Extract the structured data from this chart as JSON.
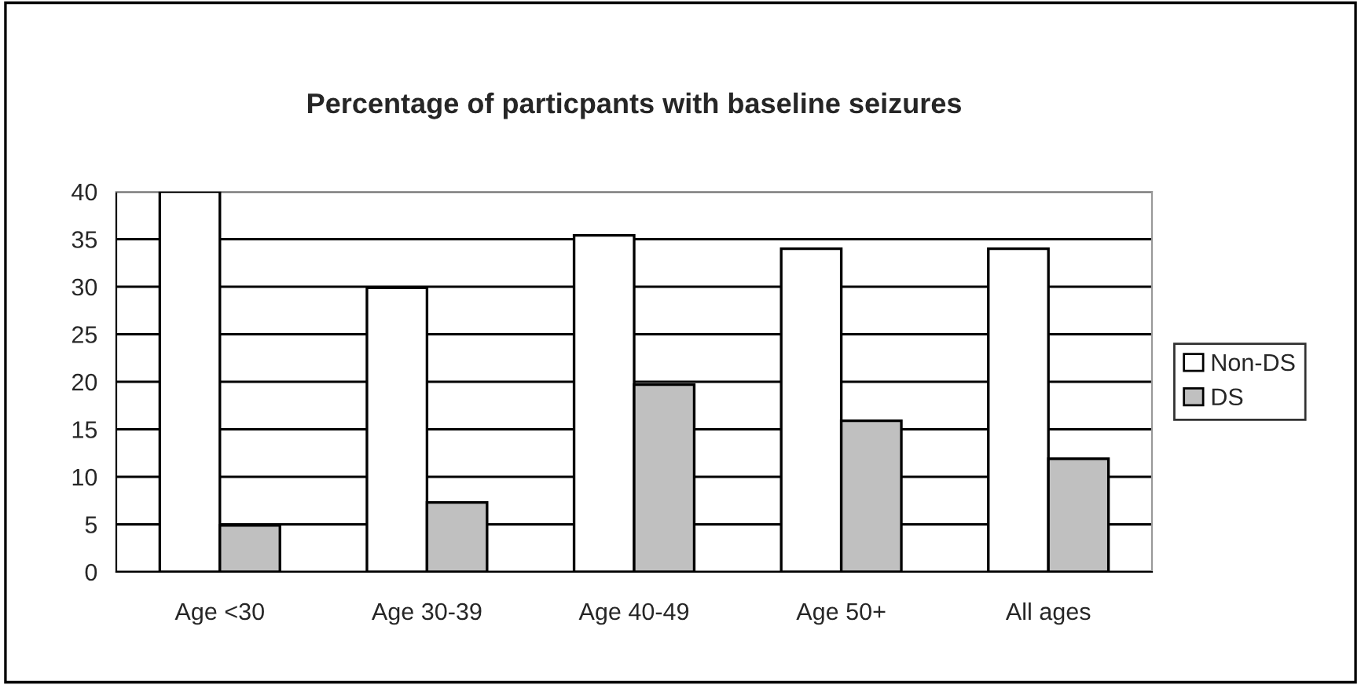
{
  "chart_data": {
    "type": "bar",
    "title": "Percentage of particpants with baseline seizures",
    "categories": [
      "Age <30",
      "Age 30-39",
      "Age 40-49",
      "Age 50+",
      "All ages"
    ],
    "series": [
      {
        "name": "Non-DS",
        "color": "#ffffff",
        "values": [
          40,
          29.9,
          35.4,
          34,
          34
        ]
      },
      {
        "name": "DS",
        "color": "#c0c0c0",
        "values": [
          4.9,
          7.3,
          19.7,
          15.9,
          11.9
        ]
      }
    ],
    "ylim": [
      0,
      40
    ],
    "yticks": [
      0,
      5,
      10,
      15,
      20,
      25,
      30,
      35,
      40
    ],
    "grid": "y",
    "legend": "right"
  }
}
